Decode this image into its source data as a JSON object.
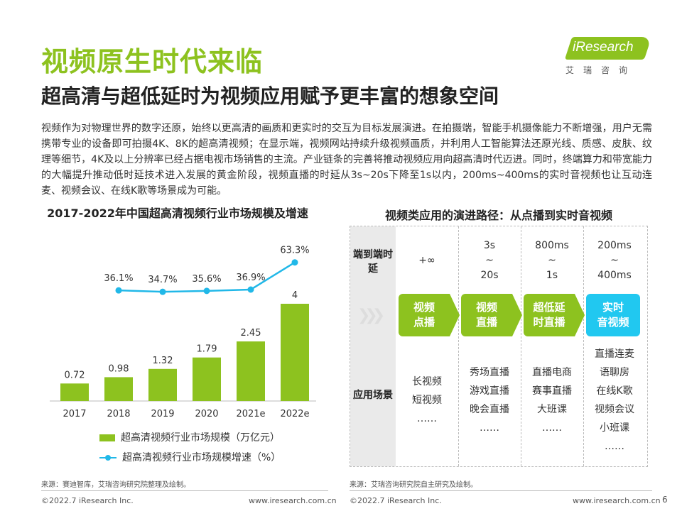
{
  "header": {
    "title": "视频原生时代来临",
    "subtitle": "超高清与超低延时为视频应用赋予更丰富的想象空间"
  },
  "logo": {
    "text": "iResearch",
    "sub": "艾瑞咨询"
  },
  "body_text": "视频作为对物理世界的数字还原，始终以更高清的画质和更实时的交互为目标发展演进。在拍摄端，智能手机摄像能力不断增强，用户无需携带专业的设备即可拍摄4K、8K的超高清视频；在显示端，视频网站持续升级视频画质，并利用人工智能算法还原光线、质感、皮肤、纹理等细节，4K及以上分辨率已经占据电视市场销售的主流。产业链条的完善将推动视频应用向超高清时代迈进。同时，终端算力和带宽能力的大幅提升推动低时延技术进入发展的黄金阶段，视频直播的时延从3s~20s下降至1s以内，200ms~400ms的实时音视频也让互动连麦、视频会议、在线K歌等场景成为可能。",
  "chart_data": {
    "type": "bar",
    "title": "2017-2022年中国超高清视频行业市场规模及增速",
    "categories": [
      "2017",
      "2018",
      "2019",
      "2020",
      "2021e",
      "2022e"
    ],
    "series": [
      {
        "name": "超高清视频行业市场规模（万亿元）",
        "type": "bar",
        "values": [
          0.72,
          0.98,
          1.32,
          1.79,
          2.45,
          4
        ],
        "labels": [
          "0.72",
          "0.98",
          "1.32",
          "1.79",
          "2.45",
          "4"
        ],
        "color": "#8dc21f"
      },
      {
        "name": "超高清视频行业市场规模增速（%）",
        "type": "line",
        "values": [
          null,
          36.1,
          34.7,
          35.6,
          36.9,
          63.3
        ],
        "labels": [
          "",
          "36.1%",
          "34.7%",
          "35.6%",
          "36.9%",
          "63.3%"
        ],
        "color": "#21b8e8"
      }
    ],
    "ylim": [
      0,
      4.8
    ],
    "grid": false,
    "legend_placement": "bottom"
  },
  "evolution": {
    "title": "视频类应用的演进路径：从点播到实时音视频",
    "row_latency_label": "端到端时延",
    "row_app_label": "应用场景",
    "columns": [
      {
        "latency": [
          "+∞"
        ],
        "name": "视频点播",
        "apps": [
          "长视频",
          "短视频",
          "……"
        ],
        "color": "#8dc21f"
      },
      {
        "latency": [
          "3s",
          "~",
          "20s"
        ],
        "name": "视频直播",
        "apps": [
          "秀场直播",
          "游戏直播",
          "晚会直播",
          "……"
        ],
        "color": "#8dc21f"
      },
      {
        "latency": [
          "800ms",
          "~",
          "1s"
        ],
        "name": "超低延时直播",
        "apps": [
          "直播电商",
          "赛事直播",
          "大班课",
          "……"
        ],
        "color": "#8dc21f"
      },
      {
        "latency": [
          "200ms",
          "~",
          "400ms"
        ],
        "name": "实时音视频",
        "apps": [
          "直播连麦",
          "语聊房",
          "在线K歌",
          "视频会议",
          "小班课",
          "……"
        ],
        "color": "#21c8f0"
      }
    ],
    "box_lines": [
      [
        "视频",
        "点播"
      ],
      [
        "视频",
        "直播"
      ],
      [
        "超低延",
        "时直播"
      ],
      [
        "实时",
        "音视频"
      ]
    ]
  },
  "sources": {
    "left": "来源：赛迪智库，艾瑞咨询研究院整理及绘制。",
    "right": "来源：艾瑞咨询研究院自主研究及绘制。"
  },
  "footer": {
    "copyright_left": "©2022.7 iResearch Inc.",
    "url_left": "www.iresearch.com.cn",
    "copyright_right": "©2022.7 iResearch Inc.",
    "url_right": "www.iresearch.com.cn",
    "page": "6"
  }
}
